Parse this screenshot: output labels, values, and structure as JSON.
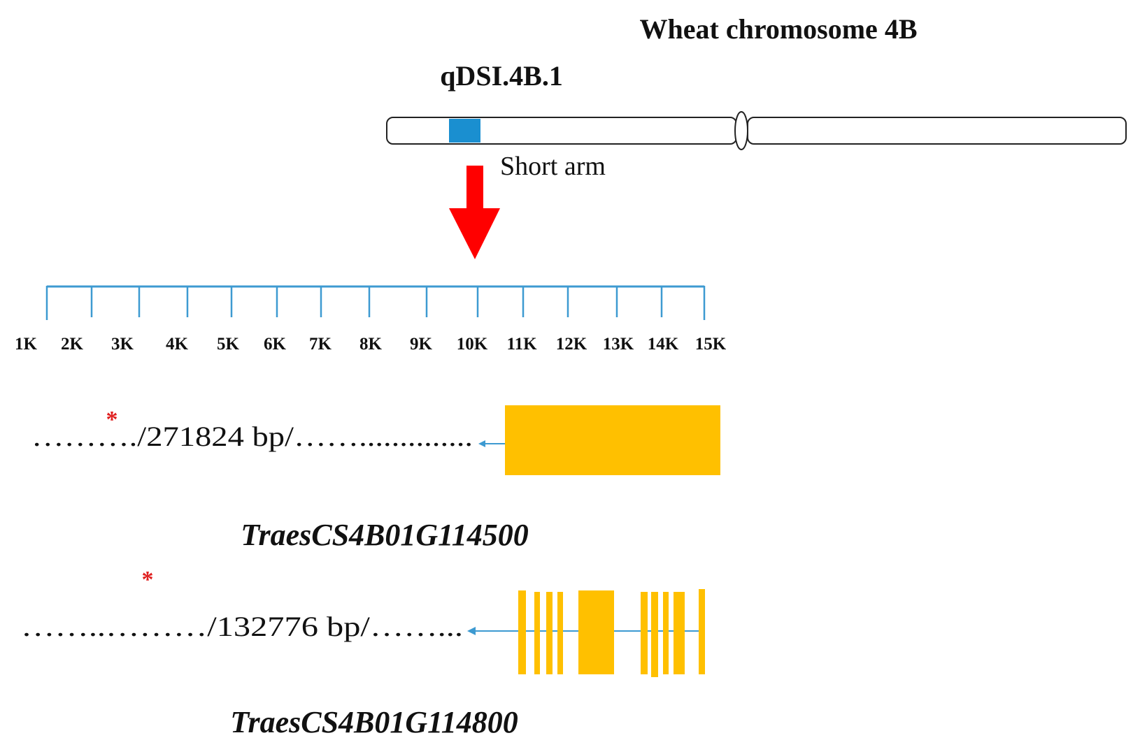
{
  "title": "Wheat chromosome 4B",
  "qtl_label": "qDSI.4B.1",
  "arm_label": "Short arm",
  "scale": {
    "ticks": [
      "1K",
      "2K",
      "3K",
      "4K",
      "5K",
      "6K",
      "7K",
      "8K",
      "9K",
      "10K",
      "11K",
      "12K",
      "13K",
      "14K",
      "15K"
    ]
  },
  "genes": [
    {
      "distance_text": "………./271824  bp/……..............",
      "gene_name": "TraesCS4B01G114500",
      "marker": "*"
    },
    {
      "distance_text": "……..………/132776 bp/……...",
      "gene_name": "TraesCS4B01G114800",
      "marker": "*"
    }
  ],
  "colors": {
    "qtl_region": "#1a8fd0",
    "arrow": "#ff0000",
    "scale_line": "#3d9ad1",
    "exon": "#ffc000",
    "marker": "#e02020",
    "text": "#111111"
  }
}
